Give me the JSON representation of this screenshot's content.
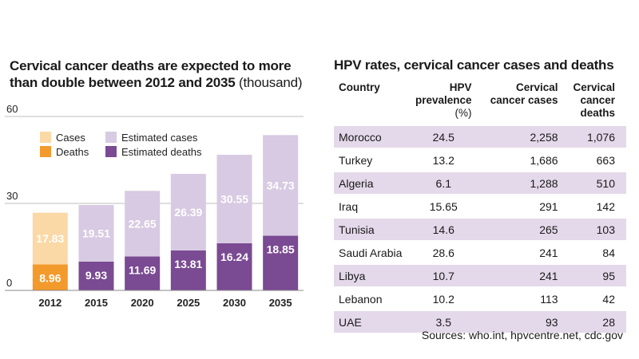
{
  "chart": {
    "title": "Cervical cancer deaths are expected to more than double between 2012 and 2035",
    "unit": "(thousand)"
  },
  "chart_data": {
    "type": "bar",
    "stacked": true,
    "title": "Cervical cancer deaths are expected to more than double between 2012 and 2035 (thousand)",
    "categories": [
      "2012",
      "2015",
      "2020",
      "2025",
      "2030",
      "2035"
    ],
    "ylim": [
      0,
      60
    ],
    "yticks": [
      0,
      30,
      60
    ],
    "grid": true,
    "legend_position": "top-left",
    "legend": [
      "Cases",
      "Deaths",
      "Estimated cases",
      "Estimated deaths"
    ],
    "series": [
      {
        "name": "Deaths",
        "values": [
          8.96,
          null,
          null,
          null,
          null,
          null
        ],
        "color": "#f39a2c"
      },
      {
        "name": "Cases",
        "values": [
          17.83,
          null,
          null,
          null,
          null,
          null
        ],
        "color": "#fbd9a6"
      },
      {
        "name": "Estimated deaths",
        "values": [
          null,
          9.93,
          11.69,
          13.81,
          16.24,
          18.85
        ],
        "color": "#7a4a93"
      },
      {
        "name": "Estimated cases",
        "values": [
          null,
          19.51,
          22.65,
          26.39,
          30.55,
          34.73
        ],
        "color": "#d8cae2"
      }
    ]
  },
  "table": {
    "title": "HPV rates, cervical cancer cases and deaths",
    "headers": {
      "country": "Country",
      "prevalence": "HPV",
      "prevalence2": "prevalence",
      "prevalence_unit": "(%)",
      "cases": "Cervical",
      "cases2": "cancer cases",
      "deaths": "Cervical",
      "deaths2": "cancer deaths"
    },
    "rows": [
      {
        "country": "Morocco",
        "prevalence": "24.5",
        "cases": "2,258",
        "deaths": "1,076"
      },
      {
        "country": "Turkey",
        "prevalence": "13.2",
        "cases": "1,686",
        "deaths": "663"
      },
      {
        "country": "Algeria",
        "prevalence": "6.1",
        "cases": "1,288",
        "deaths": "510"
      },
      {
        "country": "Iraq",
        "prevalence": "15.65",
        "cases": "291",
        "deaths": "142"
      },
      {
        "country": "Tunisia",
        "prevalence": "14.6",
        "cases": "265",
        "deaths": "103"
      },
      {
        "country": "Saudi Arabia",
        "prevalence": "28.6",
        "cases": "241",
        "deaths": "84"
      },
      {
        "country": "Libya",
        "prevalence": "10.7",
        "cases": "241",
        "deaths": "95"
      },
      {
        "country": "Lebanon",
        "prevalence": "10.2",
        "cases": "113",
        "deaths": "42"
      },
      {
        "country": "UAE",
        "prevalence": "3.5",
        "cases": "93",
        "deaths": "28"
      }
    ]
  },
  "sources": "Sources: who.int, hpvcentre.net, cdc.gov",
  "colors": {
    "cases": "#fbd9a6",
    "deaths": "#f39a2c",
    "estimated_cases": "#d8cae2",
    "estimated_deaths": "#7a4a93",
    "row_shade": "#e4d9ea"
  }
}
